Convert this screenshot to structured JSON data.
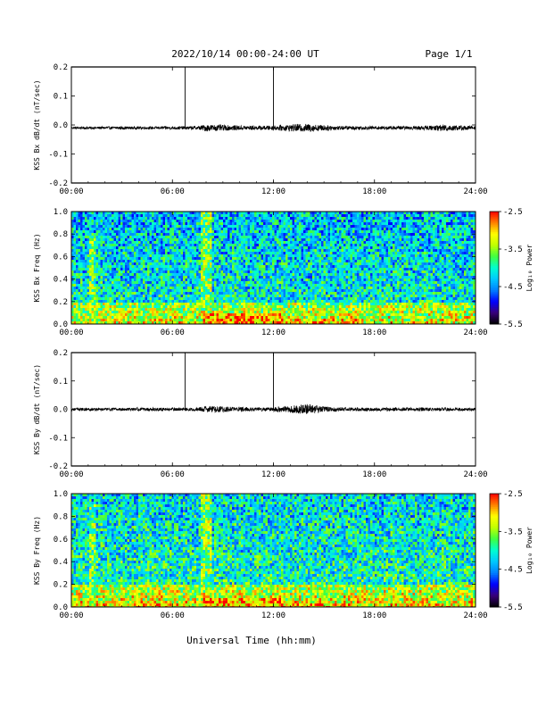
{
  "header": {
    "title": "2022/10/14  00:00-24:00 UT",
    "page": "Page 1/1"
  },
  "footer": {
    "xlabel": "Universal Time (hh:mm)"
  },
  "colors": {
    "trace": "#000000",
    "colormap": [
      "#000000",
      "#3a007a",
      "#0000ff",
      "#0080ff",
      "#00c8ff",
      "#00ffd0",
      "#40ff40",
      "#c0ff00",
      "#ffff00",
      "#ff8000",
      "#ff0000"
    ]
  },
  "chart_data": [
    {
      "type": "line",
      "id": "bx-waveform",
      "ylabel": "KSS Bx dB/dt (nT/sec)",
      "xlim": [
        0,
        24
      ],
      "ylim": [
        -0.2,
        0.2
      ],
      "x_ticks": [
        "00:00",
        "06:00",
        "12:00",
        "18:00",
        "24:00"
      ],
      "y_ticks": [
        "0.2",
        "0.1",
        "0.0",
        "-0.1",
        "-0.2"
      ],
      "baseline": -0.01,
      "spikes": [
        {
          "x": 6.75,
          "y": 0.2
        },
        {
          "x": 12.0,
          "y": 0.2
        }
      ],
      "noise_envelope": {
        "hours": [
          0,
          3,
          6,
          7.5,
          8,
          9,
          10,
          11,
          12,
          13,
          14,
          15,
          16,
          18,
          20,
          21.5,
          22,
          24
        ],
        "amplitude": [
          0.004,
          0.005,
          0.005,
          0.006,
          0.012,
          0.01,
          0.008,
          0.007,
          0.008,
          0.012,
          0.014,
          0.01,
          0.007,
          0.006,
          0.006,
          0.008,
          0.012,
          0.006
        ]
      }
    },
    {
      "type": "heatmap",
      "id": "bx-spectrogram",
      "ylabel": "KSS Bx Freq (Hz)",
      "colorbar_label": "Log₁₀ Power",
      "xlim": [
        0,
        24
      ],
      "ylim": [
        0,
        1.0
      ],
      "zlim": [
        -5.5,
        -2.5
      ],
      "x_ticks": [
        "00:00",
        "06:00",
        "12:00",
        "18:00",
        "24:00"
      ],
      "y_ticks": [
        "1.0",
        "0.8",
        "0.6",
        "0.4",
        "0.2",
        "0.0"
      ],
      "cb_ticks": [
        "-2.5",
        "-3.5",
        "-4.5",
        "-5.5"
      ],
      "background_level": -4.3,
      "low_freq_band": {
        "max_freq": 0.2,
        "level": -3.6
      },
      "enhancements": [
        {
          "start": 7.8,
          "end": 12.5,
          "max_freq": 0.1,
          "level": -2.9
        },
        {
          "start": 12.5,
          "end": 17.0,
          "max_freq": 0.05,
          "level": -3.0
        },
        {
          "start": 1.0,
          "end": 1.5,
          "max_freq": 0.8,
          "level": -3.7
        },
        {
          "start": 7.7,
          "end": 8.3,
          "max_freq": 1.0,
          "level": -3.6
        }
      ]
    },
    {
      "type": "line",
      "id": "by-waveform",
      "ylabel": "KSS By dB/dt (nT/sec)",
      "xlim": [
        0,
        24
      ],
      "ylim": [
        -0.2,
        0.2
      ],
      "x_ticks": [
        "00:00",
        "06:00",
        "12:00",
        "18:00",
        "24:00"
      ],
      "y_ticks": [
        "0.2",
        "0.1",
        "0.0",
        "-0.1",
        "-0.2"
      ],
      "baseline": 0.0,
      "spikes": [
        {
          "x": 6.75,
          "y": 0.2
        },
        {
          "x": 12.0,
          "y": 0.2
        }
      ],
      "noise_envelope": {
        "hours": [
          0,
          3,
          5,
          6,
          7.5,
          8,
          9,
          10,
          11,
          12,
          13,
          14,
          15,
          16,
          18,
          20,
          22,
          24
        ],
        "amplitude": [
          0.005,
          0.005,
          0.006,
          0.005,
          0.006,
          0.012,
          0.01,
          0.008,
          0.007,
          0.008,
          0.012,
          0.02,
          0.01,
          0.007,
          0.006,
          0.006,
          0.006,
          0.005
        ]
      }
    },
    {
      "type": "heatmap",
      "id": "by-spectrogram",
      "ylabel": "KSS By Freq (Hz)",
      "colorbar_label": "Log₁₀ Power",
      "xlim": [
        0,
        24
      ],
      "ylim": [
        0,
        1.0
      ],
      "zlim": [
        -5.5,
        -2.5
      ],
      "x_ticks": [
        "00:00",
        "06:00",
        "12:00",
        "18:00",
        "24:00"
      ],
      "y_ticks": [
        "1.0",
        "0.8",
        "0.6",
        "0.4",
        "0.2",
        "0.0"
      ],
      "cb_ticks": [
        "-2.5",
        "-3.5",
        "-4.5",
        "-5.5"
      ],
      "background_level": -4.2,
      "low_freq_band": {
        "max_freq": 0.2,
        "level": -3.5
      },
      "enhancements": [
        {
          "start": 7.8,
          "end": 12.5,
          "max_freq": 0.1,
          "level": -2.9
        },
        {
          "start": 12.5,
          "end": 17.0,
          "max_freq": 0.05,
          "level": -3.0
        },
        {
          "start": 1.0,
          "end": 1.5,
          "max_freq": 0.9,
          "level": -3.7
        },
        {
          "start": 7.7,
          "end": 8.3,
          "max_freq": 1.0,
          "level": -3.6
        }
      ]
    }
  ]
}
